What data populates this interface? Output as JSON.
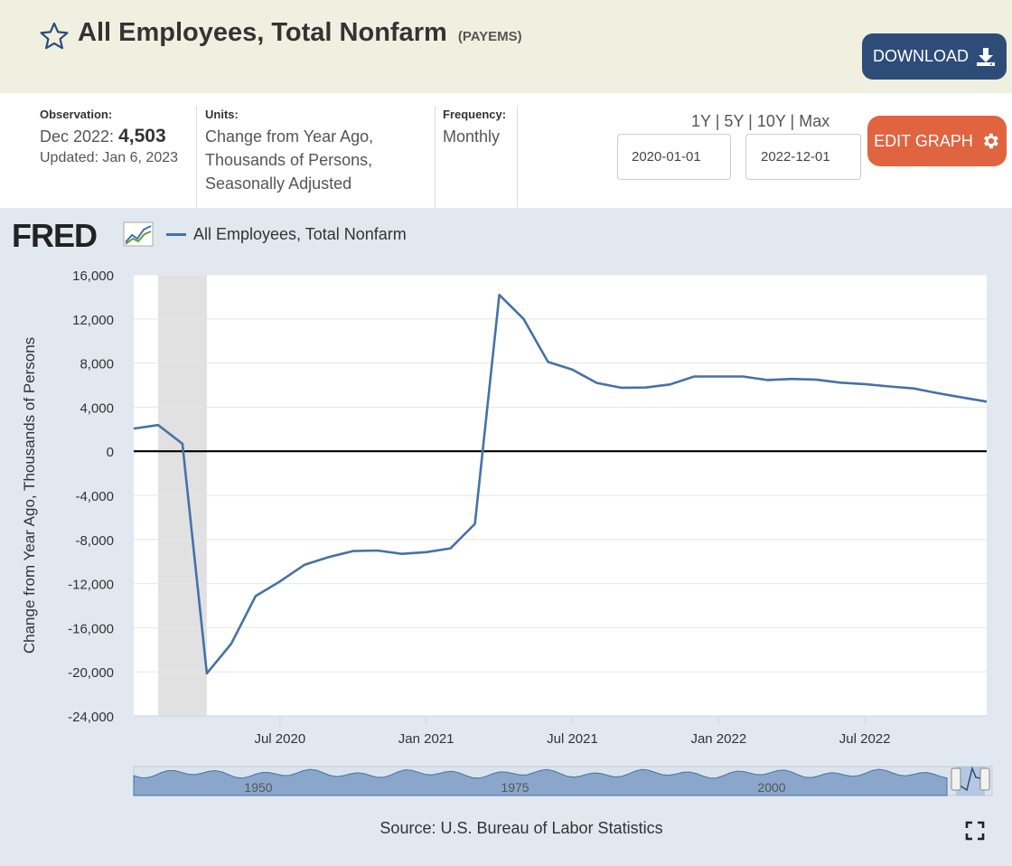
{
  "header": {
    "title": "All Employees, Total Nonfarm",
    "series_id": "(PAYEMS)",
    "download_label": "DOWNLOAD"
  },
  "meta": {
    "observation_label": "Observation:",
    "observation_date": "Dec 2022:",
    "observation_value": "4,503",
    "updated": "Updated: Jan 6, 2023",
    "units_label": "Units:",
    "units_lines": [
      "Change from Year Ago,",
      "Thousands of Persons,",
      "Seasonally Adjusted"
    ],
    "frequency_label": "Frequency:",
    "frequency_value": "Monthly"
  },
  "controls": {
    "range_1y": "1Y",
    "range_5y": "5Y",
    "range_10y": "10Y",
    "range_max": "Max",
    "start_date": "2020-01-01",
    "end_date": "2022-12-01",
    "edit_label": "EDIT GRAPH"
  },
  "graph": {
    "logo_text": "FRED",
    "source": "Source: U.S. Bureau of Labor Statistics",
    "navigator_labels": [
      "1950",
      "1975",
      "2000"
    ]
  },
  "colors": {
    "series": "#4572a7",
    "recession": "#e1e1e1",
    "download_bg": "#2e4c78",
    "edit_bg": "#e0643f",
    "header_bg": "#f0f0e0",
    "panel_bg": "#e1e8f0"
  },
  "chart_data": {
    "type": "line",
    "title": "",
    "ylabel": "Change from Year Ago, Thousands of Persons",
    "xlabel": "",
    "ylim": [
      -24000,
      16000
    ],
    "yticks": [
      "16,000",
      "12,000",
      "8,000",
      "4,000",
      "0",
      "-4,000",
      "-8,000",
      "-12,000",
      "-16,000",
      "-20,000",
      "-24,000"
    ],
    "ytick_values": [
      16000,
      12000,
      8000,
      4000,
      0,
      -4000,
      -8000,
      -12000,
      -16000,
      -20000,
      -24000
    ],
    "xticks": [
      {
        "label": "Jul 2020",
        "date": "2020-07"
      },
      {
        "label": "Jan 2021",
        "date": "2021-01"
      },
      {
        "label": "Jul 2021",
        "date": "2021-07"
      },
      {
        "label": "Jan 2022",
        "date": "2022-01"
      },
      {
        "label": "Jul 2022",
        "date": "2022-07"
      }
    ],
    "recession": {
      "start": "2020-02",
      "end": "2020-04"
    },
    "grid": true,
    "legend": "top-left",
    "series": [
      {
        "name": "All Employees, Total Nonfarm",
        "x": [
          "2020-01",
          "2020-02",
          "2020-03",
          "2020-04",
          "2020-05",
          "2020-06",
          "2020-07",
          "2020-08",
          "2020-09",
          "2020-10",
          "2020-11",
          "2020-12",
          "2021-01",
          "2021-02",
          "2021-03",
          "2021-04",
          "2021-05",
          "2021-06",
          "2021-07",
          "2021-08",
          "2021-09",
          "2021-10",
          "2021-11",
          "2021-12",
          "2022-01",
          "2022-02",
          "2022-03",
          "2022-04",
          "2022-05",
          "2022-06",
          "2022-07",
          "2022-08",
          "2022-09",
          "2022-10",
          "2022-11",
          "2022-12"
        ],
        "values": [
          2060,
          2380,
          680,
          -20140,
          -17460,
          -13130,
          -11800,
          -10300,
          -9600,
          -9050,
          -9000,
          -9300,
          -9150,
          -8800,
          -6580,
          14180,
          12000,
          8100,
          7400,
          6200,
          5760,
          5780,
          6060,
          6780,
          6780,
          6780,
          6460,
          6560,
          6500,
          6220,
          6090,
          5880,
          5700,
          5260,
          4880,
          4503
        ]
      }
    ]
  }
}
